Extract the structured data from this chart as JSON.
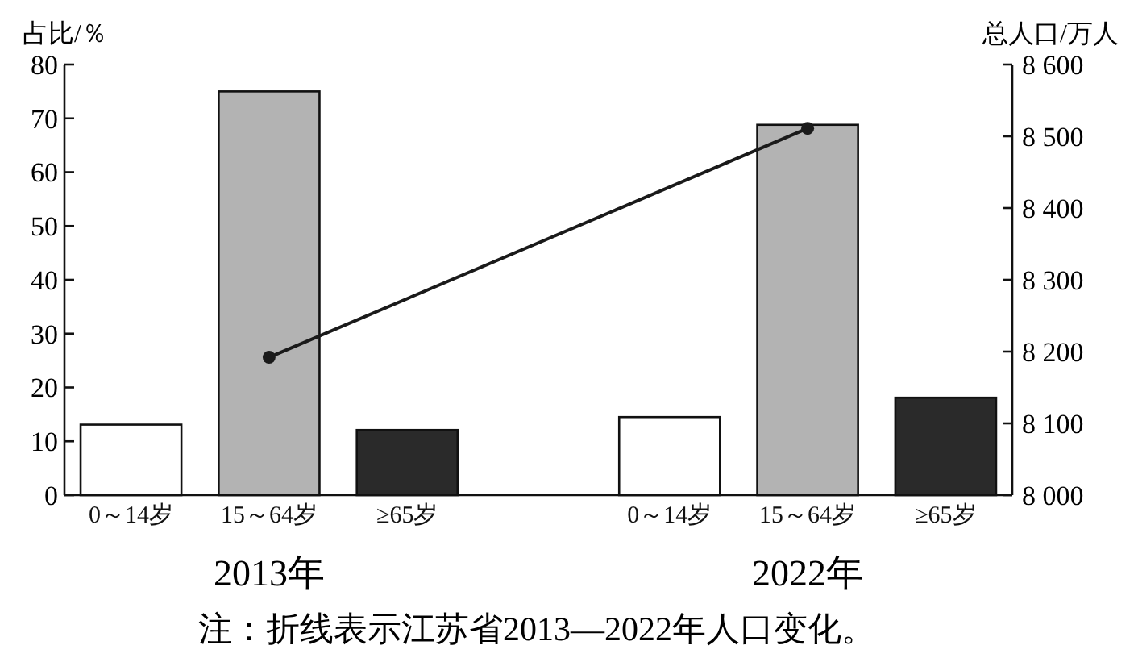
{
  "chart_data": {
    "type": "bar",
    "categories": [
      "2013年",
      "2022年"
    ],
    "ylabel": "占比/％",
    "y2label": "总人口/万人",
    "ylim": [
      0,
      80
    ],
    "yticks": [
      0,
      10,
      20,
      30,
      40,
      50,
      60,
      70,
      80
    ],
    "y2lim": [
      8000,
      8600
    ],
    "y2ticks": [
      {
        "value": 8000,
        "label": "8 000"
      },
      {
        "value": 8100,
        "label": "8 100"
      },
      {
        "value": 8200,
        "label": "8 200"
      },
      {
        "value": 8300,
        "label": "8 300"
      },
      {
        "value": 8400,
        "label": "8 400"
      },
      {
        "value": 8500,
        "label": "8 500"
      },
      {
        "value": 8600,
        "label": "8 600"
      }
    ],
    "marker": "circle",
    "series": [
      {
        "name": "0～14岁",
        "color": "#ffffff",
        "values": [
          13.1,
          14.5
        ]
      },
      {
        "name": "15～64岁",
        "color": "#b3b3b3",
        "values": [
          75,
          68.8
        ]
      },
      {
        "name": "≥65岁",
        "color": "#2a2a2a",
        "values": [
          12.1,
          18.1
        ]
      },
      {
        "type": "line",
        "axis": "y2",
        "color": "#1a1a1a",
        "values": [
          8192,
          8511
        ]
      }
    ],
    "annotations": [
      "注：折线表示江苏省2013—2022年人口变化。"
    ]
  }
}
